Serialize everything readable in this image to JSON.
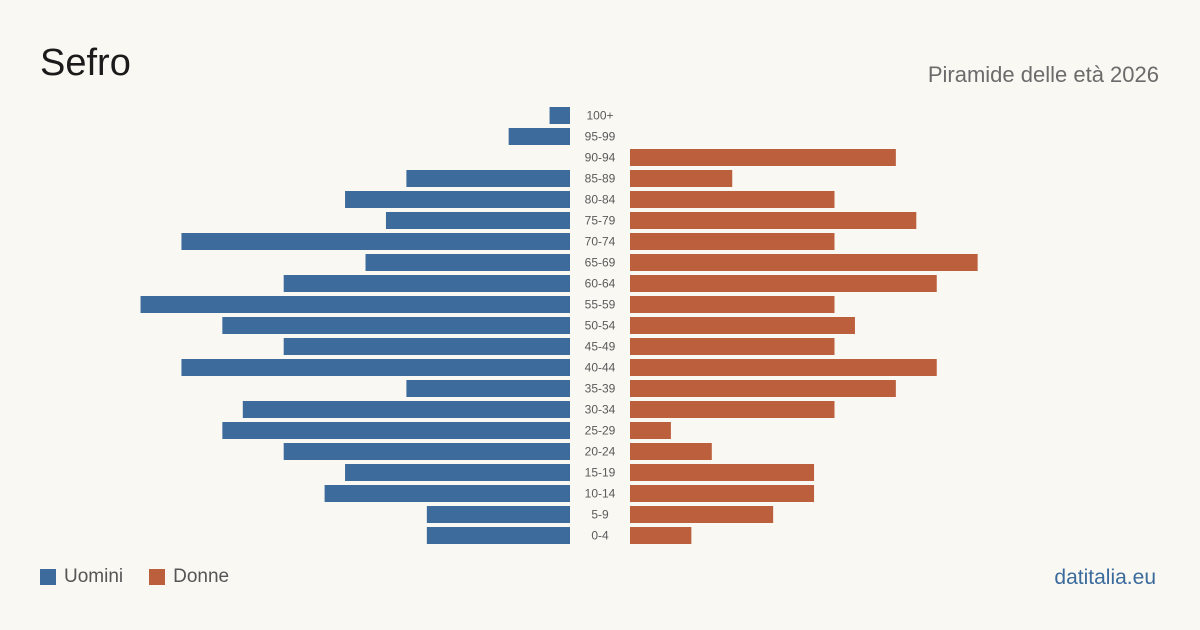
{
  "title": "Sefro",
  "subtitle": "Piramide delle età 2026",
  "source": "datitalia.eu",
  "colors": {
    "men": "#3d6b9b",
    "women": "#bc5f3c"
  },
  "chart_data": {
    "type": "bar",
    "orientation": "horizontal-pyramid",
    "categories": [
      "100+",
      "95-99",
      "90-94",
      "85-89",
      "80-84",
      "75-79",
      "70-74",
      "65-69",
      "60-64",
      "55-59",
      "50-54",
      "45-49",
      "40-44",
      "35-39",
      "30-34",
      "25-29",
      "20-24",
      "15-19",
      "10-14",
      "5-9",
      "0-4"
    ],
    "series": [
      {
        "name": "Uomini",
        "values": [
          1,
          3,
          0,
          8,
          11,
          9,
          19,
          10,
          14,
          21,
          17,
          14,
          19,
          8,
          16,
          17,
          14,
          11,
          12,
          7,
          7
        ]
      },
      {
        "name": "Donne",
        "values": [
          0,
          0,
          13,
          5,
          10,
          14,
          10,
          17,
          15,
          10,
          11,
          10,
          15,
          13,
          10,
          2,
          4,
          9,
          9,
          7,
          3
        ]
      }
    ],
    "legend": [
      "Uomini",
      "Donne"
    ],
    "legend_position": "bottom-left",
    "grid": false
  }
}
